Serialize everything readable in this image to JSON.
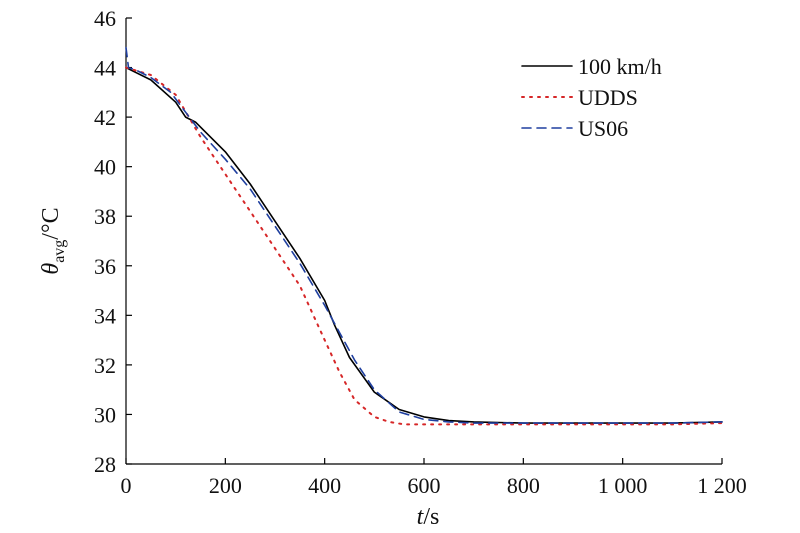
{
  "chart_data": {
    "type": "line",
    "xlabel": "t/s",
    "xlabel_italic": "t",
    "xlabel_unit": "/s",
    "ylabel_symbol": "θ",
    "ylabel_subscript": "avg",
    "ylabel_unit": "/°C",
    "xlim": [
      0,
      1200
    ],
    "ylim": [
      28,
      46
    ],
    "x_ticks": [
      {
        "value": 0,
        "label": "0"
      },
      {
        "value": 200,
        "label": "200"
      },
      {
        "value": 400,
        "label": "400"
      },
      {
        "value": 600,
        "label": "600"
      },
      {
        "value": 800,
        "label": "800"
      },
      {
        "value": 1000,
        "label": "1 000"
      },
      {
        "value": 1200,
        "label": "1 200"
      }
    ],
    "y_ticks": [
      {
        "value": 28,
        "label": "28"
      },
      {
        "value": 30,
        "label": "30"
      },
      {
        "value": 32,
        "label": "32"
      },
      {
        "value": 34,
        "label": "34"
      },
      {
        "value": 36,
        "label": "36"
      },
      {
        "value": 38,
        "label": "38"
      },
      {
        "value": 40,
        "label": "40"
      },
      {
        "value": 42,
        "label": "42"
      },
      {
        "value": 44,
        "label": "44"
      },
      {
        "value": 46,
        "label": "46"
      }
    ],
    "grid": false,
    "legend_position": "top-right",
    "series": [
      {
        "name": "100 km/h",
        "color": "#000000",
        "style": "solid",
        "x": [
          0,
          50,
          100,
          120,
          140,
          200,
          250,
          300,
          350,
          400,
          420,
          450,
          500,
          550,
          600,
          650,
          700,
          800,
          900,
          1000,
          1100,
          1200
        ],
        "y": [
          44.0,
          43.5,
          42.6,
          42.0,
          41.8,
          40.6,
          39.3,
          37.8,
          36.3,
          34.6,
          33.6,
          32.3,
          30.9,
          30.2,
          29.9,
          29.75,
          29.7,
          29.65,
          29.65,
          29.65,
          29.65,
          29.7
        ]
      },
      {
        "name": "UDDS",
        "color": "#d62728",
        "style": "dotted",
        "x": [
          0,
          50,
          100,
          150,
          200,
          250,
          300,
          350,
          400,
          430,
          460,
          500,
          530,
          560,
          600,
          650,
          700,
          800,
          900,
          1000,
          1100,
          1200
        ],
        "y": [
          44.0,
          43.7,
          42.9,
          41.2,
          39.7,
          38.2,
          36.7,
          35.2,
          33.0,
          31.7,
          30.6,
          29.9,
          29.7,
          29.6,
          29.6,
          29.6,
          29.6,
          29.6,
          29.6,
          29.6,
          29.6,
          29.65
        ]
      },
      {
        "name": "US06",
        "color": "#1f3f9f",
        "style": "dashed",
        "x": [
          0,
          5,
          20,
          50,
          90,
          120,
          150,
          200,
          250,
          300,
          350,
          400,
          430,
          460,
          500,
          550,
          600,
          650,
          700,
          800,
          900,
          1000,
          1100,
          1200
        ],
        "y": [
          44.8,
          44.0,
          43.9,
          43.6,
          43.0,
          42.2,
          41.4,
          40.3,
          39.1,
          37.6,
          36.1,
          34.4,
          33.3,
          32.2,
          31.0,
          30.1,
          29.8,
          29.7,
          29.65,
          29.65,
          29.65,
          29.65,
          29.65,
          29.7
        ]
      }
    ]
  }
}
